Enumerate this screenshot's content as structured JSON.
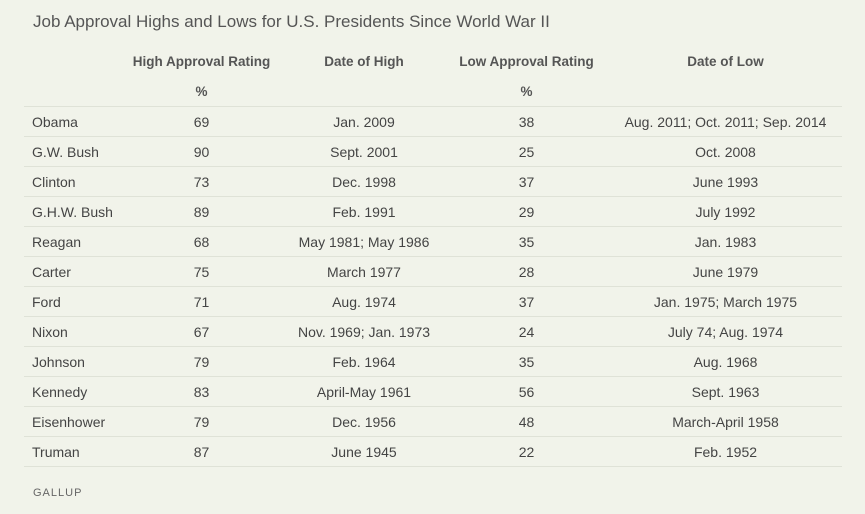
{
  "title": "Job Approval Highs and Lows for U.S. Presidents Since World War II",
  "source": "GALLUP",
  "chart_data": {
    "type": "table",
    "title": "Job Approval Highs and Lows for U.S. Presidents Since World War II",
    "columns": [
      "",
      "High Approval Rating",
      "Date of High",
      "Low Approval Rating",
      "Date of Low"
    ],
    "units_row": [
      "",
      "%",
      "",
      "%",
      ""
    ],
    "rows": [
      {
        "president": "Obama",
        "high": "69",
        "date_high": "Jan. 2009",
        "low": "38",
        "date_low": "Aug. 2011; Oct. 2011; Sep. 2014"
      },
      {
        "president": "G.W. Bush",
        "high": "90",
        "date_high": "Sept. 2001",
        "low": "25",
        "date_low": "Oct. 2008"
      },
      {
        "president": "Clinton",
        "high": "73",
        "date_high": "Dec. 1998",
        "low": "37",
        "date_low": "June 1993"
      },
      {
        "president": "G.H.W. Bush",
        "high": "89",
        "date_high": "Feb. 1991",
        "low": "29",
        "date_low": "July 1992"
      },
      {
        "president": "Reagan",
        "high": "68",
        "date_high": "May 1981; May 1986",
        "low": "35",
        "date_low": "Jan. 1983"
      },
      {
        "president": "Carter",
        "high": "75",
        "date_high": "March 1977",
        "low": "28",
        "date_low": "June 1979"
      },
      {
        "president": "Ford",
        "high": "71",
        "date_high": "Aug. 1974",
        "low": "37",
        "date_low": "Jan. 1975; March 1975"
      },
      {
        "president": "Nixon",
        "high": "67",
        "date_high": "Nov. 1969; Jan. 1973",
        "low": "24",
        "date_low": "July 74; Aug. 1974"
      },
      {
        "president": "Johnson",
        "high": "79",
        "date_high": "Feb. 1964",
        "low": "35",
        "date_low": "Aug. 1968"
      },
      {
        "president": "Kennedy",
        "high": "83",
        "date_high": "April-May 1961",
        "low": "56",
        "date_low": "Sept. 1963"
      },
      {
        "president": "Eisenhower",
        "high": "79",
        "date_high": "Dec. 1956",
        "low": "48",
        "date_low": "March-April 1958"
      },
      {
        "president": "Truman",
        "high": "87",
        "date_high": "June 1945",
        "low": "22",
        "date_low": "Feb. 1952"
      }
    ]
  }
}
